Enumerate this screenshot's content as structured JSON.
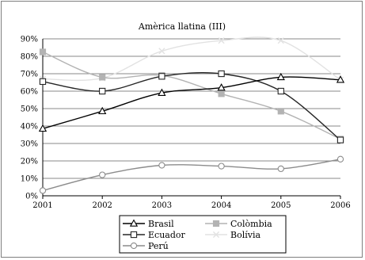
{
  "chart_data": {
    "type": "line",
    "title": "Amèrica llatina (III)",
    "xlabel": "",
    "ylabel": "",
    "x": [
      "2001",
      "2002",
      "2003",
      "2004",
      "2005",
      "2006"
    ],
    "ylim": [
      0,
      90
    ],
    "y_ticks": [
      "0%",
      "10%",
      "20%",
      "30%",
      "40%",
      "50%",
      "60%",
      "70%",
      "80%",
      "90%"
    ],
    "grid": "horizontal",
    "smooth": true,
    "legend_position": "bottom",
    "series": [
      {
        "name": "Brasil",
        "values": [
          38.5,
          48.5,
          59,
          62,
          68,
          66.5
        ],
        "color": "#000000",
        "marker": "triangle"
      },
      {
        "name": "Colòmbia",
        "values": [
          82.5,
          68,
          69,
          58.5,
          48.5,
          32.5
        ],
        "color": "#b3b3b3",
        "marker": "square-filled"
      },
      {
        "name": "Ecuador",
        "values": [
          65.5,
          60,
          68.5,
          70,
          60,
          32
        ],
        "color": "#262626",
        "marker": "square-open"
      },
      {
        "name": "Bolívia",
        "values": [
          67,
          67.5,
          83,
          89,
          89,
          66.5
        ],
        "color": "#e2e2e2",
        "marker": "cross"
      },
      {
        "name": "Perú",
        "values": [
          3,
          12,
          17.5,
          17,
          15.5,
          21
        ],
        "color": "#8c8c8c",
        "marker": "circle"
      }
    ]
  }
}
